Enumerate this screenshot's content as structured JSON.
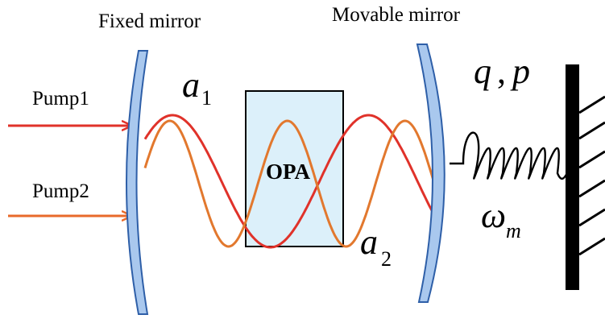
{
  "labels": {
    "fixed_mirror": "Fixed mirror",
    "movable_mirror": "Movable mirror",
    "pump1": "Pump1",
    "pump2": "Pump2",
    "opa": "OPA",
    "mode1_letter": "a",
    "mode1_sub": "1",
    "mode2_letter": "a",
    "mode2_sub": "2",
    "oscillator_q": "q",
    "oscillator_comma": ",",
    "oscillator_p": "p",
    "omega_letter": "ω",
    "omega_sub": "m"
  },
  "colors": {
    "mirror_fill": "#a9c8ee",
    "mirror_stroke": "#2e5fa8",
    "opa_fill": "#dcf0fa",
    "pump1": "#e0322a",
    "pump2": "#e86a2a",
    "mode1": "#e0322a",
    "mode2": "#e2782e",
    "spring": "#000000",
    "wall": "#000000"
  },
  "icons": {
    "fixed_mirror": "concave-mirror-icon",
    "movable_mirror": "concave-mirror-icon",
    "spring": "coil-spring-icon",
    "wall": "hatched-wall-icon"
  }
}
